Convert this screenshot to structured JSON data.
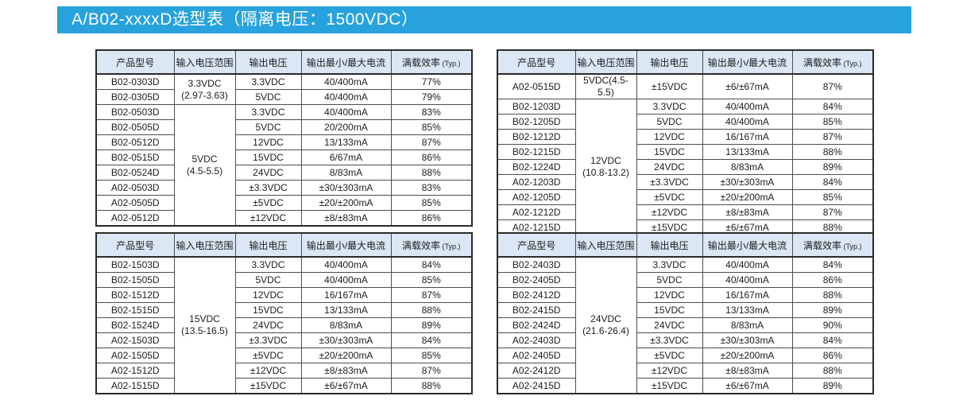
{
  "page_title": "A/B02-xxxxD选型表（隔离电压：1500VDC）",
  "colors": {
    "banner_blue": "#27A2DC",
    "table_header_bg": "#DBE7F4",
    "outer_border": "#2a2a2a",
    "inner_border": "#4d4d4d"
  },
  "columns": [
    "产品型号",
    "输入电压范围",
    "输出电压",
    "输出最小/最大电流",
    "满载效率"
  ],
  "efficiency_note": "(Typ.)",
  "tables": [
    {
      "id": "top-left",
      "rows": [
        {
          "model": "B02-0303D",
          "input": "3.3VDC\n(2.97-3.63)",
          "input_rowspan": 2,
          "vout": "3.3VDC",
          "iout": "40/400mA",
          "eff": "77%"
        },
        {
          "model": "B02-0305D",
          "vout": "5VDC",
          "iout": "40/400mA",
          "eff": "79%"
        },
        {
          "model": "B02-0503D",
          "input": "5VDC\n(4.5-5.5)",
          "input_rowspan": 8,
          "vout": "3.3VDC",
          "iout": "40/400mA",
          "eff": "83%"
        },
        {
          "model": "B02-0505D",
          "vout": "5VDC",
          "iout": "20/200mA",
          "eff": "85%"
        },
        {
          "model": "B02-0512D",
          "vout": "12VDC",
          "iout": "13/133mA",
          "eff": "87%"
        },
        {
          "model": "B02-0515D",
          "vout": "15VDC",
          "iout": "6/67mA",
          "eff": "86%"
        },
        {
          "model": "B02-0524D",
          "vout": "24VDC",
          "iout": "8/83mA",
          "eff": "88%"
        },
        {
          "model": "A02-0503D",
          "vout": "±3.3VDC",
          "iout": "±30/±303mA",
          "eff": "83%"
        },
        {
          "model": "A02-0505D",
          "vout": "±5VDC",
          "iout": "±20/±200mA",
          "eff": "85%"
        },
        {
          "model": "A02-0512D",
          "vout": "±12VDC",
          "iout": "±8/±83mA",
          "eff": "86%"
        }
      ]
    },
    {
      "id": "top-right",
      "rows": [
        {
          "model": "A02-0515D",
          "input": "5VDC(4.5-5.5)",
          "input_rowspan": 1,
          "vout": "±15VDC",
          "iout": "±6/±67mA",
          "eff": "87%"
        },
        {
          "model": "B02-1203D",
          "input": "12VDC\n(10.8-13.2)",
          "input_rowspan": 9,
          "vout": "3.3VDC",
          "iout": "40/400mA",
          "eff": "84%"
        },
        {
          "model": "B02-1205D",
          "vout": "5VDC",
          "iout": "40/400mA",
          "eff": "85%"
        },
        {
          "model": "B02-1212D",
          "vout": "12VDC",
          "iout": "16/167mA",
          "eff": "87%"
        },
        {
          "model": "B02-1215D",
          "vout": "15VDC",
          "iout": "13/133mA",
          "eff": "88%"
        },
        {
          "model": "B02-1224D",
          "vout": "24VDC",
          "iout": "8/83mA",
          "eff": "89%"
        },
        {
          "model": "A02-1203D",
          "vout": "±3.3VDC",
          "iout": "±30/±303mA",
          "eff": "84%"
        },
        {
          "model": "A02-1205D",
          "vout": "±5VDC",
          "iout": "±20/±200mA",
          "eff": "85%"
        },
        {
          "model": "A02-1212D",
          "vout": "±12VDC",
          "iout": "±8/±83mA",
          "eff": "87%"
        },
        {
          "model": "A02-1215D",
          "vout": "±15VDC",
          "iout": "±6/±67mA",
          "eff": "88%"
        }
      ]
    },
    {
      "id": "bottom-left",
      "rows": [
        {
          "model": "B02-1503D",
          "input": "15VDC\n(13.5-16.5)",
          "input_rowspan": 9,
          "vout": "3.3VDC",
          "iout": "40/400mA",
          "eff": "84%"
        },
        {
          "model": "B02-1505D",
          "vout": "5VDC",
          "iout": "40/400mA",
          "eff": "85%"
        },
        {
          "model": "B02-1512D",
          "vout": "12VDC",
          "iout": "16/167mA",
          "eff": "87%"
        },
        {
          "model": "B02-1515D",
          "vout": "15VDC",
          "iout": "13/133mA",
          "eff": "88%"
        },
        {
          "model": "B02-1524D",
          "vout": "24VDC",
          "iout": "8/83mA",
          "eff": "89%"
        },
        {
          "model": "A02-1503D",
          "vout": "±3.3VDC",
          "iout": "±30/±303mA",
          "eff": "84%"
        },
        {
          "model": "A02-1505D",
          "vout": "±5VDC",
          "iout": "±20/±200mA",
          "eff": "85%"
        },
        {
          "model": "A02-1512D",
          "vout": "±12VDC",
          "iout": "±8/±83mA",
          "eff": "87%"
        },
        {
          "model": "A02-1515D",
          "vout": "±15VDC",
          "iout": "±6/±67mA",
          "eff": "88%"
        }
      ]
    },
    {
      "id": "bottom-right",
      "rows": [
        {
          "model": "B02-2403D",
          "input": "24VDC\n(21.6-26.4)",
          "input_rowspan": 9,
          "vout": "3.3VDC",
          "iout": "40/400mA",
          "eff": "84%"
        },
        {
          "model": "B02-2405D",
          "vout": "5VDC",
          "iout": "40/400mA",
          "eff": "86%"
        },
        {
          "model": "B02-2412D",
          "vout": "12VDC",
          "iout": "16/167mA",
          "eff": "88%"
        },
        {
          "model": "B02-2415D",
          "vout": "15VDC",
          "iout": "13/133mA",
          "eff": "89%"
        },
        {
          "model": "B02-2424D",
          "vout": "24VDC",
          "iout": "8/83mA",
          "eff": "90%"
        },
        {
          "model": "A02-2403D",
          "vout": "±3.3VDC",
          "iout": "±30/±303mA",
          "eff": "84%"
        },
        {
          "model": "A02-2405D",
          "vout": "±5VDC",
          "iout": "±20/±200mA",
          "eff": "86%"
        },
        {
          "model": "A02-2412D",
          "vout": "±12VDC",
          "iout": "±8/±83mA",
          "eff": "88%"
        },
        {
          "model": "A02-2415D",
          "vout": "±15VDC",
          "iout": "±6/±67mA",
          "eff": "89%"
        }
      ]
    }
  ]
}
